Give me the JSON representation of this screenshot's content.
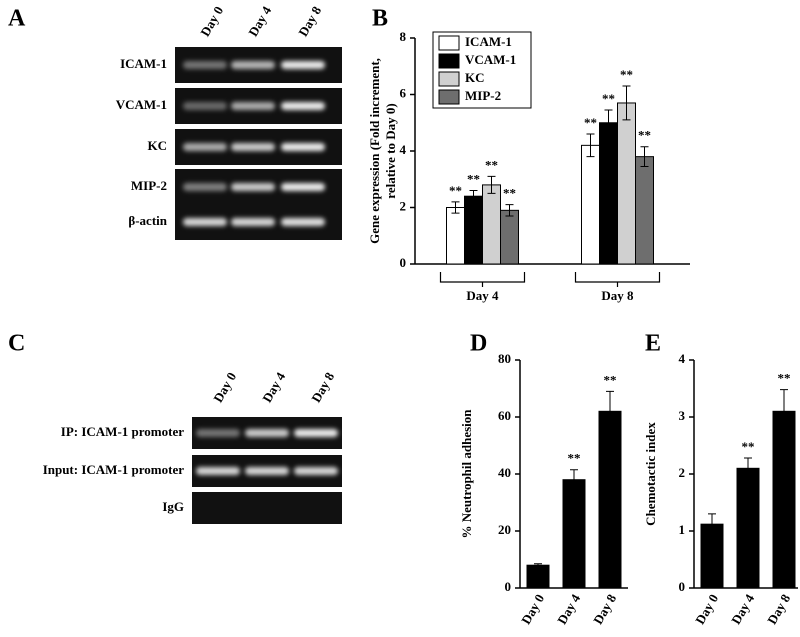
{
  "panel_labels": [
    "A",
    "B",
    "C",
    "D",
    "E"
  ],
  "gel_a": {
    "lanes": [
      "Day 0",
      "Day 4",
      "Day 8"
    ],
    "rows": [
      "ICAM-1",
      "VCAM-1",
      "KC",
      "MIP-2",
      "β-actin"
    ]
  },
  "gel_c": {
    "lanes": [
      "Day 0",
      "Day 4",
      "Day 8"
    ],
    "rows": [
      "IP: ICAM-1 promoter",
      "Input: ICAM-1 promoter",
      "IgG"
    ]
  },
  "chart_data": [
    {
      "type": "grouped_bar",
      "ylabel": [
        "Gene expression (Fold increment,",
        "relative to Day 0)"
      ],
      "categories": [
        "Day 4",
        "Day 8"
      ],
      "ylim": [
        0,
        8
      ],
      "yticks": [
        0,
        2,
        4,
        6,
        8
      ],
      "legend": "upper left",
      "series": [
        {
          "name": "ICAM-1",
          "color": "#ffffff",
          "values": [
            2.0,
            4.2
          ],
          "errors": [
            0.2,
            0.4
          ],
          "significance": [
            "**",
            "**"
          ]
        },
        {
          "name": "VCAM-1",
          "color": "#000000",
          "values": [
            2.4,
            5.0
          ],
          "errors": [
            0.2,
            0.45
          ],
          "significance": [
            "**",
            "**"
          ]
        },
        {
          "name": "KC",
          "color": "#d0d0d0",
          "values": [
            2.8,
            5.7
          ],
          "errors": [
            0.3,
            0.6
          ],
          "significance": [
            "**",
            "**"
          ]
        },
        {
          "name": "MIP-2",
          "color": "#6e6e6e",
          "values": [
            1.9,
            3.8
          ],
          "errors": [
            0.2,
            0.35
          ],
          "significance": [
            "**",
            "**"
          ]
        }
      ]
    },
    {
      "type": "bar",
      "ylabel": "% Neutrophil adhesion",
      "categories": [
        "Day 0",
        "Day 4",
        "Day 8"
      ],
      "values": [
        8,
        38,
        62
      ],
      "errors": [
        0.5,
        3.5,
        7
      ],
      "significance": [
        null,
        "**",
        "**"
      ],
      "color": "#000000",
      "ylim": [
        0,
        80
      ],
      "yticks": [
        0,
        20,
        40,
        60,
        80
      ]
    },
    {
      "type": "bar",
      "ylabel": "Chemotactic index",
      "categories": [
        "Day 0",
        "Day 4",
        "Day 8"
      ],
      "values": [
        1.12,
        2.1,
        3.1
      ],
      "errors": [
        0.18,
        0.18,
        0.38
      ],
      "significance": [
        null,
        "**",
        "**"
      ],
      "color": "#000000",
      "ylim": [
        0,
        4
      ],
      "yticks": [
        0,
        1,
        2,
        3,
        4
      ]
    }
  ]
}
